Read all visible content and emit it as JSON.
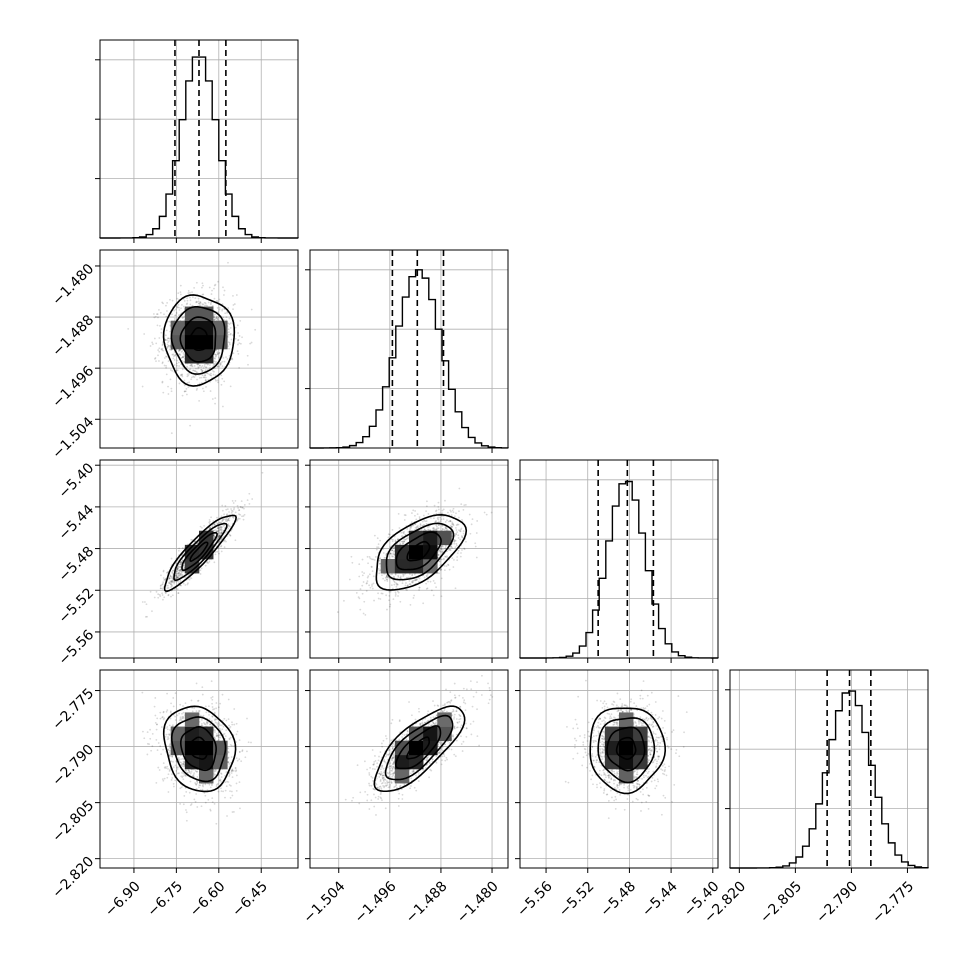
{
  "chart_data": {
    "type": "corner",
    "grid": true,
    "colors": {
      "line": "#000000",
      "grid": "#b0b0b0",
      "samples": "#000000",
      "background": "#ffffff"
    },
    "parameters": [
      {
        "index": 0,
        "range": [
          -7.02,
          -6.32
        ],
        "ticks": [
          -6.9,
          -6.75,
          -6.6,
          -6.45
        ],
        "tick_labels": [
          "−6.90",
          "−6.75",
          "−6.60",
          "−6.45"
        ],
        "quantiles": [
          -6.755,
          -6.67,
          -6.575
        ],
        "mean": -6.67,
        "sd": 0.062,
        "hist_peak": 0.93
      },
      {
        "index": 1,
        "range": [
          -1.5085,
          -1.4775
        ],
        "ticks": [
          -1.504,
          -1.496,
          -1.488,
          -1.48
        ],
        "tick_labels": [
          "−1.504",
          "−1.496",
          "−1.488",
          "−1.480"
        ],
        "quantiles": [
          -1.4956,
          -1.4917,
          -1.4876
        ],
        "mean": -1.4915,
        "sd": 0.0035,
        "hist_peak": 0.9
      },
      {
        "index": 2,
        "range": [
          -5.585,
          -5.395
        ],
        "ticks": [
          -5.56,
          -5.52,
          -5.48,
          -5.44,
          -5.4
        ],
        "tick_labels": [
          "−5.56",
          "−5.52",
          "−5.48",
          "−5.44",
          "−5.40"
        ],
        "quantiles": [
          -5.51,
          -5.482,
          -5.457
        ],
        "mean": -5.483,
        "sd": 0.018,
        "hist_peak": 0.9
      },
      {
        "index": 3,
        "range": [
          -2.8225,
          -2.7695
        ],
        "ticks": [
          -2.82,
          -2.805,
          -2.79,
          -2.775
        ],
        "tick_labels": [
          "−2.820",
          "−2.805",
          "−2.790",
          "−2.775"
        ],
        "quantiles": [
          -2.7965,
          -2.7905,
          -2.7848
        ],
        "mean": -2.7905,
        "sd": 0.0057,
        "hist_peak": 0.9
      }
    ],
    "correlations": [
      {
        "x": 0,
        "y": 1,
        "rho": 0.0
      },
      {
        "x": 0,
        "y": 2,
        "rho": 0.9
      },
      {
        "x": 1,
        "y": 2,
        "rho": 0.55
      },
      {
        "x": 0,
        "y": 3,
        "rho": -0.15
      },
      {
        "x": 1,
        "y": 3,
        "rho": 0.75
      },
      {
        "x": 2,
        "y": 3,
        "rho": 0.0
      }
    ]
  }
}
